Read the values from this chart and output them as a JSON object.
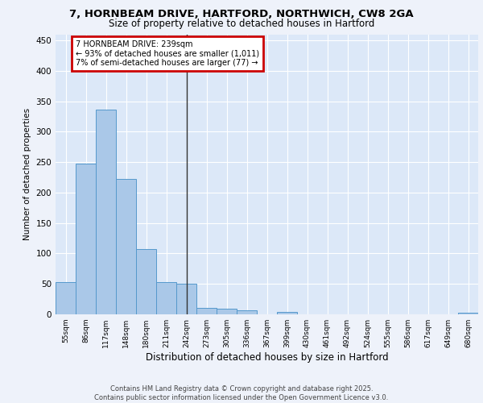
{
  "title_line1": "7, HORNBEAM DRIVE, HARTFORD, NORTHWICH, CW8 2GA",
  "title_line2": "Size of property relative to detached houses in Hartford",
  "xlabel": "Distribution of detached houses by size in Hartford",
  "ylabel": "Number of detached properties",
  "categories": [
    "55sqm",
    "86sqm",
    "117sqm",
    "148sqm",
    "180sqm",
    "211sqm",
    "242sqm",
    "273sqm",
    "305sqm",
    "336sqm",
    "367sqm",
    "399sqm",
    "430sqm",
    "461sqm",
    "492sqm",
    "524sqm",
    "555sqm",
    "586sqm",
    "617sqm",
    "649sqm",
    "680sqm"
  ],
  "values": [
    53,
    247,
    336,
    222,
    107,
    53,
    50,
    10,
    9,
    7,
    0,
    4,
    0,
    0,
    0,
    0,
    0,
    0,
    0,
    0,
    3
  ],
  "bar_color": "#aac8e8",
  "bar_edge_color": "#5599cc",
  "highlight_bar_index": 6,
  "highlight_line_color": "#333333",
  "annotation_text": "7 HORNBEAM DRIVE: 239sqm\n← 93% of detached houses are smaller (1,011)\n7% of semi-detached houses are larger (77) →",
  "annotation_box_color": "#cc0000",
  "annotation_text_color": "#000000",
  "annotation_bg_color": "#ffffff",
  "background_color": "#eef2fa",
  "grid_color": "#ffffff",
  "axis_bg_color": "#dce8f8",
  "footer_text": "Contains HM Land Registry data © Crown copyright and database right 2025.\nContains public sector information licensed under the Open Government Licence v3.0.",
  "ylim": [
    0,
    460
  ],
  "yticks": [
    0,
    50,
    100,
    150,
    200,
    250,
    300,
    350,
    400,
    450
  ]
}
